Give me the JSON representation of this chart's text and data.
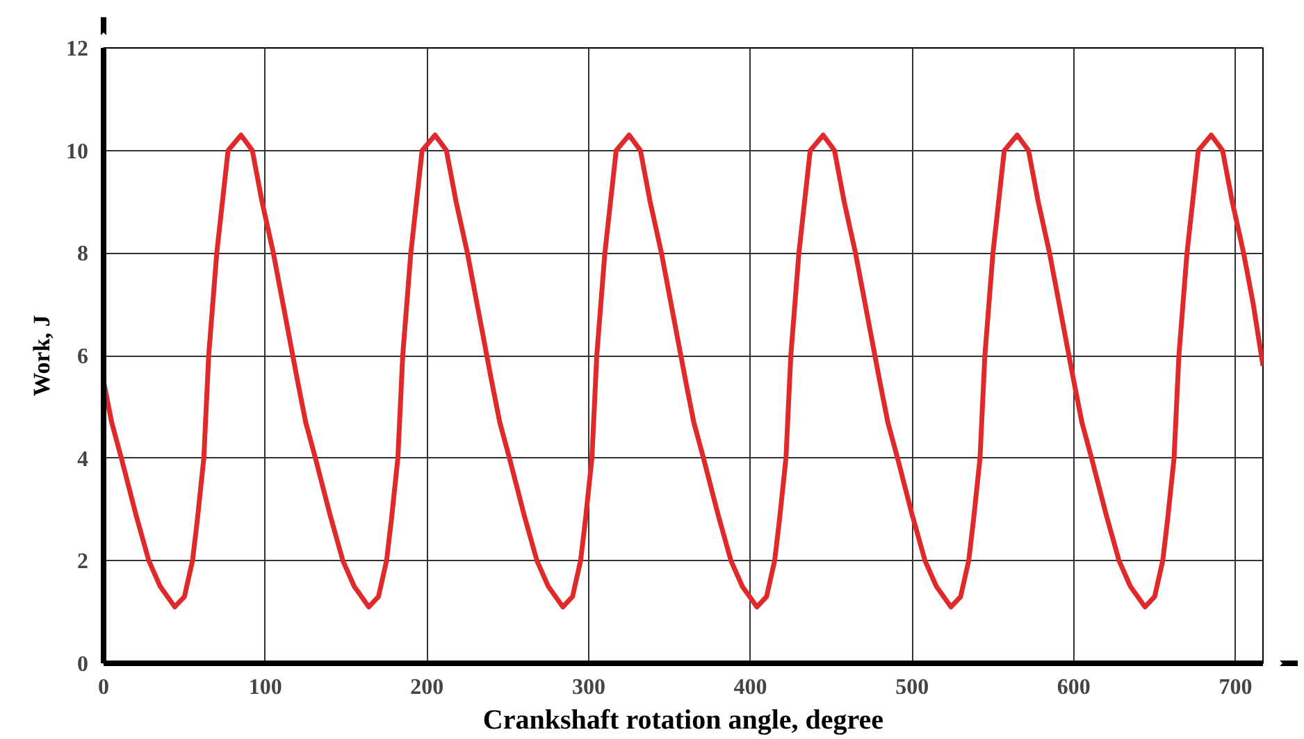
{
  "chart_data": {
    "type": "line",
    "xlabel": "Crankshaft rotation angle, degree",
    "ylabel": "Work, J",
    "xlim": [
      0,
      717
    ],
    "ylim": [
      0,
      12
    ],
    "xticks": [
      0,
      100,
      200,
      300,
      400,
      500,
      600,
      700
    ],
    "yticks": [
      0,
      2,
      4,
      6,
      8,
      10,
      12
    ],
    "grid": true,
    "marker": "none",
    "line_style": "solid",
    "series": [
      {
        "color": "#e0292b",
        "x": [
          0,
          5,
          11,
          20,
          28,
          35,
          44,
          50,
          55,
          58,
          62,
          65,
          70,
          77,
          85,
          92,
          98,
          105,
          111,
          117,
          120,
          125,
          131,
          140,
          148,
          155,
          164,
          170,
          175,
          178,
          182,
          185,
          190,
          197,
          205,
          212,
          218,
          225,
          231,
          237,
          240,
          245,
          251,
          260,
          268,
          275,
          284,
          290,
          295,
          298,
          302,
          305,
          310,
          317,
          325,
          332,
          338,
          345,
          351,
          357,
          360,
          365,
          371,
          380,
          388,
          395,
          404,
          410,
          415,
          418,
          422,
          425,
          430,
          437,
          445,
          452,
          458,
          465,
          471,
          477,
          480,
          485,
          491,
          500,
          508,
          515,
          524,
          530,
          535,
          538,
          542,
          545,
          550,
          557,
          565,
          572,
          578,
          585,
          591,
          597,
          600,
          605,
          611,
          620,
          628,
          635,
          644,
          650,
          655,
          658,
          662,
          665,
          670,
          677,
          685,
          692,
          698,
          705,
          711,
          717
        ],
        "values": [
          5.5,
          4.7,
          4.0,
          2.9,
          2.0,
          1.5,
          1.1,
          1.3,
          2.0,
          2.8,
          4.0,
          6.0,
          8.0,
          10.0,
          10.3,
          10.0,
          9.0,
          8.0,
          7.0,
          6.0,
          5.5,
          4.7,
          4.0,
          2.9,
          2.0,
          1.5,
          1.1,
          1.3,
          2.0,
          2.8,
          4.0,
          6.0,
          8.0,
          10.0,
          10.3,
          10.0,
          9.0,
          8.0,
          7.0,
          6.0,
          5.5,
          4.7,
          4.0,
          2.9,
          2.0,
          1.5,
          1.1,
          1.3,
          2.0,
          2.8,
          4.0,
          6.0,
          8.0,
          10.0,
          10.3,
          10.0,
          9.0,
          8.0,
          7.0,
          6.0,
          5.5,
          4.7,
          4.0,
          2.9,
          2.0,
          1.5,
          1.1,
          1.3,
          2.0,
          2.8,
          4.0,
          6.0,
          8.0,
          10.0,
          10.3,
          10.0,
          9.0,
          8.0,
          7.0,
          6.0,
          5.5,
          4.7,
          4.0,
          2.9,
          2.0,
          1.5,
          1.1,
          1.3,
          2.0,
          2.8,
          4.0,
          6.0,
          8.0,
          10.0,
          10.3,
          10.0,
          9.0,
          8.0,
          7.0,
          6.0,
          5.5,
          4.7,
          4.0,
          2.9,
          2.0,
          1.5,
          1.1,
          1.3,
          2.0,
          2.8,
          4.0,
          6.0,
          8.0,
          10.0,
          10.3,
          10.0,
          9.0,
          8.0,
          7.0,
          5.8
        ]
      }
    ]
  }
}
